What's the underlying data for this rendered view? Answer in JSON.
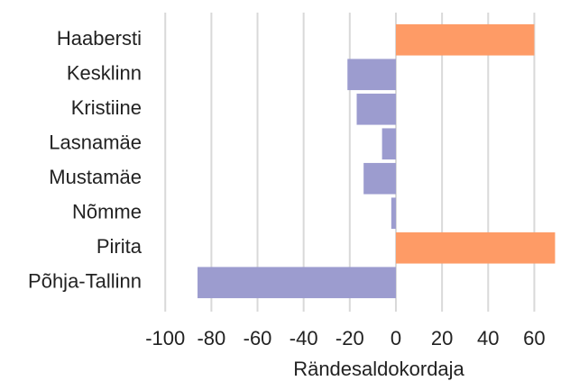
{
  "chart_data": {
    "type": "bar",
    "orientation": "horizontal",
    "categories": [
      "Haabersti",
      "Kesklinn",
      "Kristiine",
      "Lasnamäe",
      "Mustamäe",
      "Nõmme",
      "Pirita",
      "Põhja-Tallinn"
    ],
    "values": [
      60,
      -21,
      -17,
      -6,
      -14,
      -2,
      69,
      -86
    ],
    "positive_color": "#fe9b66",
    "negative_color": "#9c9ccf",
    "x_label": "Rändesaldokordaja",
    "xlim": [
      -104,
      70
    ],
    "xticks": [
      -100,
      -80,
      -60,
      -40,
      -20,
      0,
      20,
      40,
      60
    ],
    "grid": true
  }
}
